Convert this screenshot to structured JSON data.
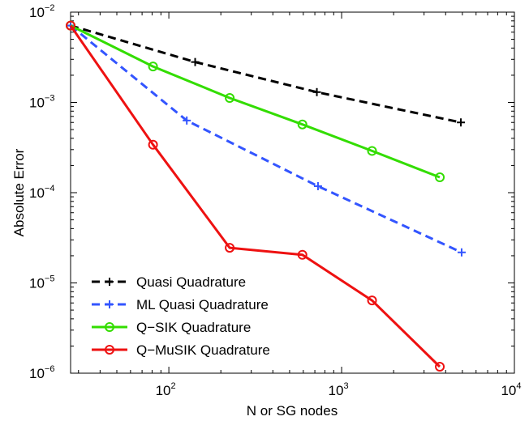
{
  "chart_data": {
    "type": "line",
    "title": "",
    "xlabel": "N or SG nodes",
    "ylabel": "Absolute Error",
    "xscale": "log",
    "yscale": "log",
    "xlim": [
      27,
      10000
    ],
    "ylim": [
      1e-06,
      0.01
    ],
    "grid": false,
    "legend_position": "bottom-left",
    "x_ticks": [
      {
        "base": "10",
        "exp": "2",
        "value": 100
      },
      {
        "base": "10",
        "exp": "3",
        "value": 1000
      },
      {
        "base": "10",
        "exp": "4",
        "value": 10000
      }
    ],
    "y_ticks": [
      {
        "base": "10",
        "exp": "−6",
        "value": 1e-06
      },
      {
        "base": "10",
        "exp": "−5",
        "value": 1e-05
      },
      {
        "base": "10",
        "exp": "−4",
        "value": 0.0001
      },
      {
        "base": "10",
        "exp": "−3",
        "value": 0.001
      },
      {
        "base": "10",
        "exp": "−2",
        "value": 0.01
      }
    ],
    "series": [
      {
        "name": "Quasi Quadrature",
        "color": "#000000",
        "style": "dashed",
        "marker": "plus",
        "points": [
          [
            27,
            0.0071
          ],
          [
            142,
            0.0028
          ],
          [
            719,
            0.0013
          ],
          [
            4900,
            0.0006
          ]
        ]
      },
      {
        "name": "ML Quasi Quadrature",
        "color": "#3355ff",
        "style": "dashed",
        "marker": "plus",
        "points": [
          [
            27,
            0.0071
          ],
          [
            127,
            0.00063
          ],
          [
            730,
            0.000118
          ],
          [
            4950,
            2.18e-05
          ]
        ]
      },
      {
        "name": "Q−SIK Quadrature",
        "color": "#33dd00",
        "style": "solid",
        "marker": "circle",
        "points": [
          [
            27,
            0.0071
          ],
          [
            81,
            0.0025
          ],
          [
            225,
            0.00112
          ],
          [
            593,
            0.00057
          ],
          [
            1500,
            0.00029
          ],
          [
            3700,
            0.000148
          ]
        ]
      },
      {
        "name": "Q−MuSIK Quadrature",
        "color": "#ee1111",
        "style": "solid",
        "marker": "circle",
        "points": [
          [
            27,
            0.0071
          ],
          [
            81,
            0.00034
          ],
          [
            225,
            2.45e-05
          ],
          [
            593,
            2.05e-05
          ],
          [
            1500,
            6.4e-06
          ],
          [
            3700,
            1.18e-06
          ]
        ]
      }
    ]
  }
}
